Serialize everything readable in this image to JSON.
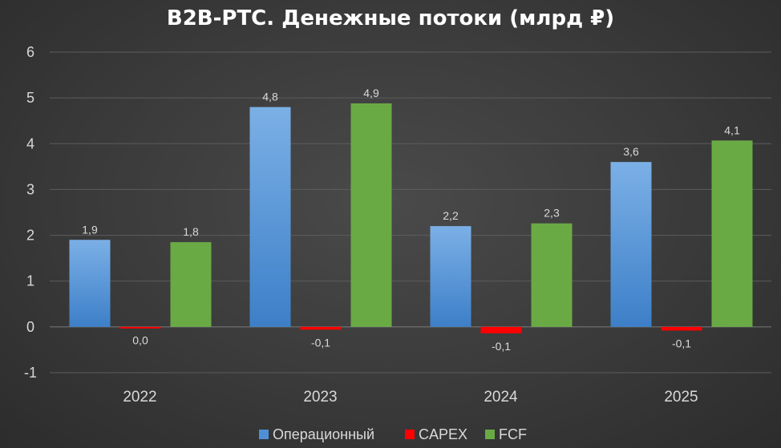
{
  "chart_data": {
    "type": "bar",
    "title": "B2B-РТС. Денежные потоки (млрд ₽)",
    "categories": [
      "2022",
      "2023",
      "2024",
      "2025"
    ],
    "series": [
      {
        "name": "Операционный",
        "values": [
          1.9,
          4.8,
          2.2,
          3.6
        ],
        "labels": [
          "1,9",
          "4,8",
          "2,2",
          "3,6"
        ],
        "color": "#4f8fd6"
      },
      {
        "name": "CAPEX",
        "values": [
          -0.01,
          -0.06,
          -0.14,
          -0.08
        ],
        "labels": [
          "0,0",
          "-0,1",
          "-0,1",
          "-0,1"
        ],
        "color": "#ff0000"
      },
      {
        "name": "FCF",
        "values": [
          1.85,
          4.88,
          2.26,
          4.07
        ],
        "labels": [
          "1,8",
          "4,9",
          "2,3",
          "4,1"
        ],
        "color": "#6aaa45"
      }
    ],
    "yticks": [
      "-1",
      "0",
      "1",
      "2",
      "3",
      "4",
      "5",
      "6"
    ],
    "ylim": [
      -1,
      6
    ],
    "grid": true,
    "legend": "bottom"
  }
}
